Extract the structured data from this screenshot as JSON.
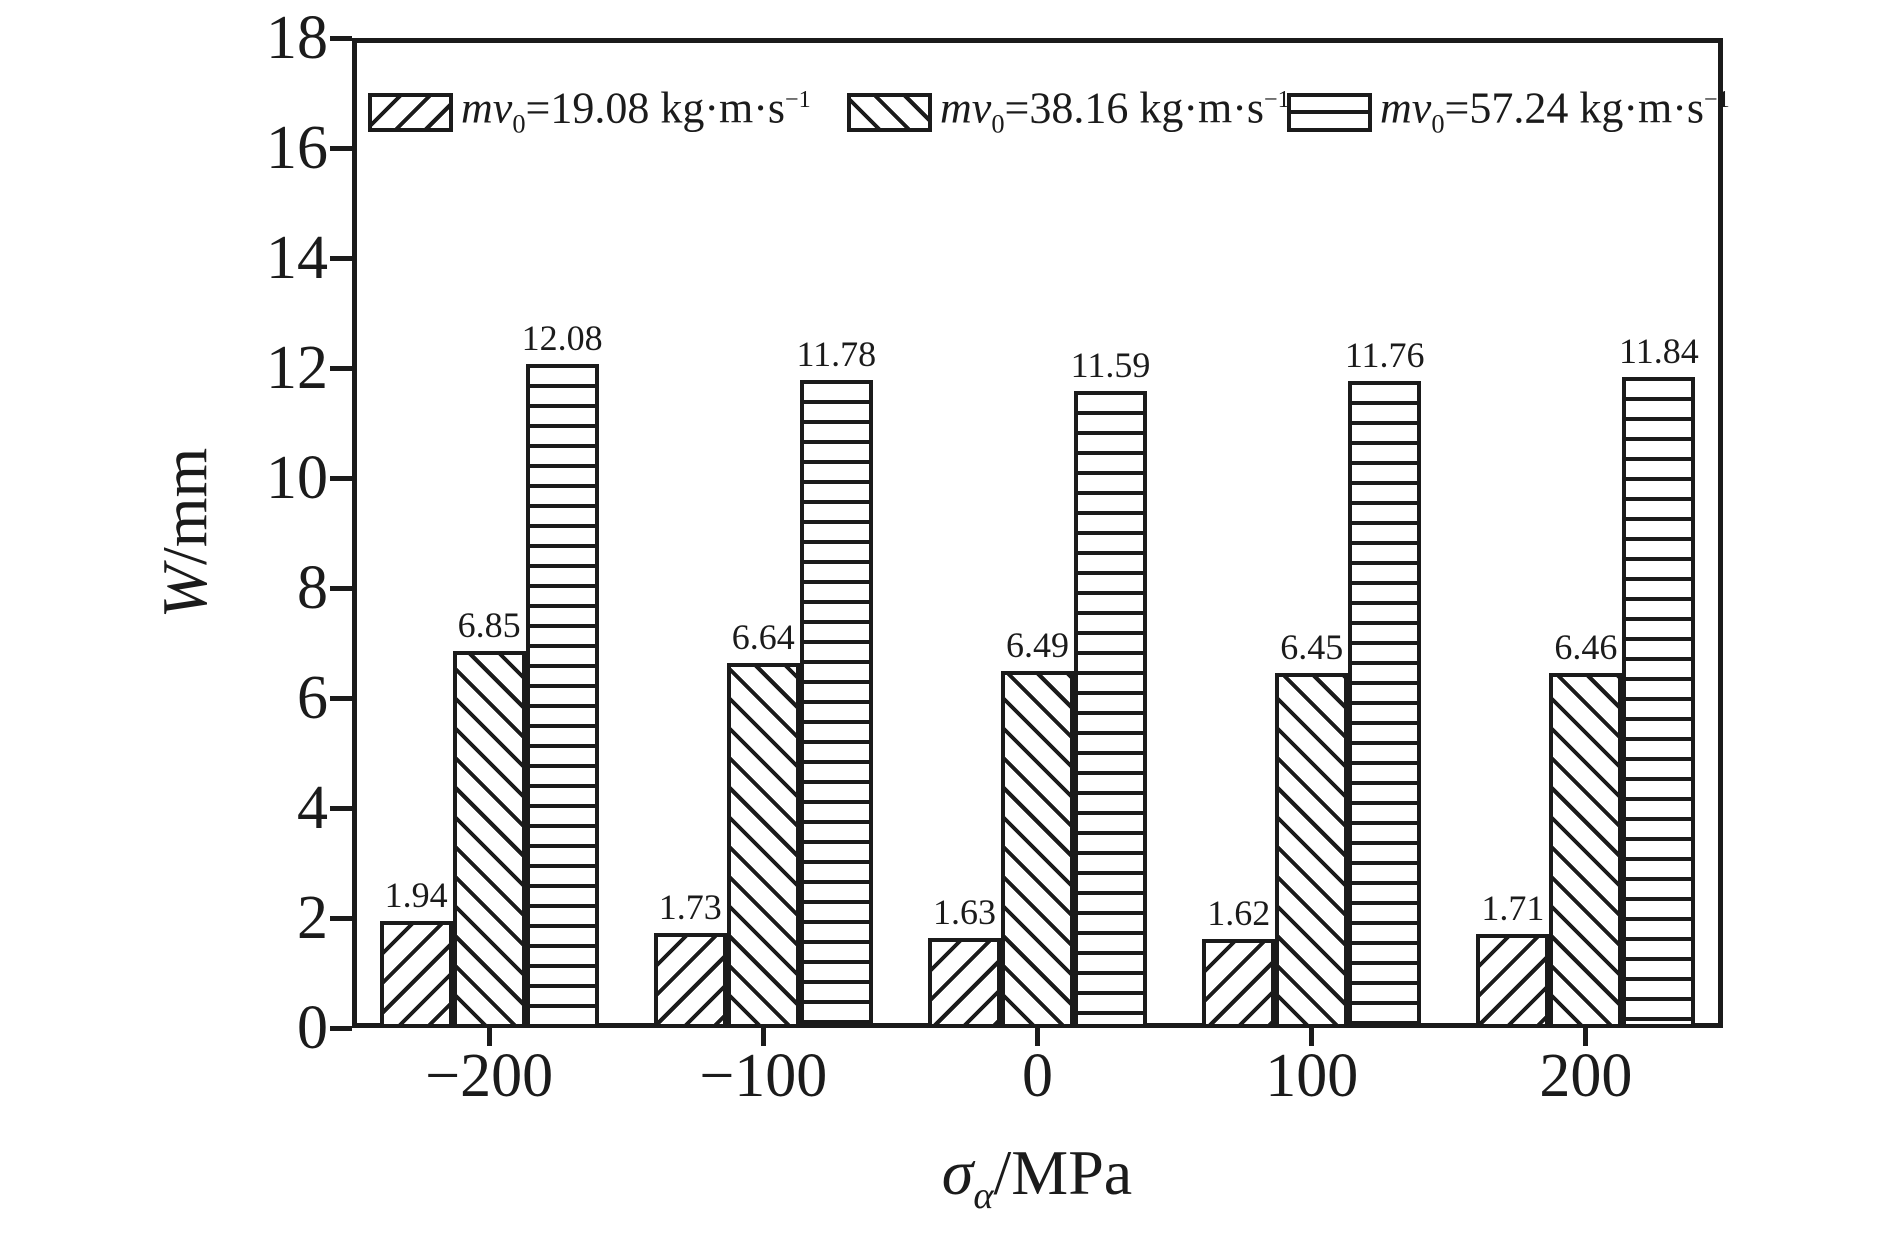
{
  "figure": {
    "background": "#ffffff",
    "ink": "#1b1b1b"
  },
  "chart_data": {
    "type": "bar",
    "title": "",
    "categories": [
      "−200",
      "−100",
      "0",
      "100",
      "200"
    ],
    "series": [
      {
        "label_var": "mv",
        "label_sub": "0",
        "label_rest": "=19.08 kg·m·s",
        "label_sup": "−1",
        "pattern": "diagonal-forward",
        "values": [
          1.94,
          1.73,
          1.63,
          1.62,
          1.71
        ]
      },
      {
        "label_var": "mv",
        "label_sub": "0",
        "label_rest": "=38.16 kg·m·s",
        "label_sup": "−1",
        "pattern": "diagonal-backward",
        "values": [
          6.85,
          6.64,
          6.49,
          6.45,
          6.46
        ]
      },
      {
        "label_var": "mv",
        "label_sub": "0",
        "label_rest": "=57.24 kg·m·s",
        "label_sup": "−1",
        "pattern": "horizontal-lines",
        "values": [
          12.08,
          11.78,
          11.59,
          11.76,
          11.84
        ]
      }
    ],
    "x_axis": {
      "label_var": "σ",
      "label_sub": "α",
      "label_unit": "/MPa"
    },
    "y_axis": {
      "label_var": "W",
      "label_unit": "/mm",
      "min": 0,
      "max": 18,
      "tick_step": 2
    },
    "legend_position": "top-inside",
    "grid": false,
    "value_label_decimals": 2
  }
}
